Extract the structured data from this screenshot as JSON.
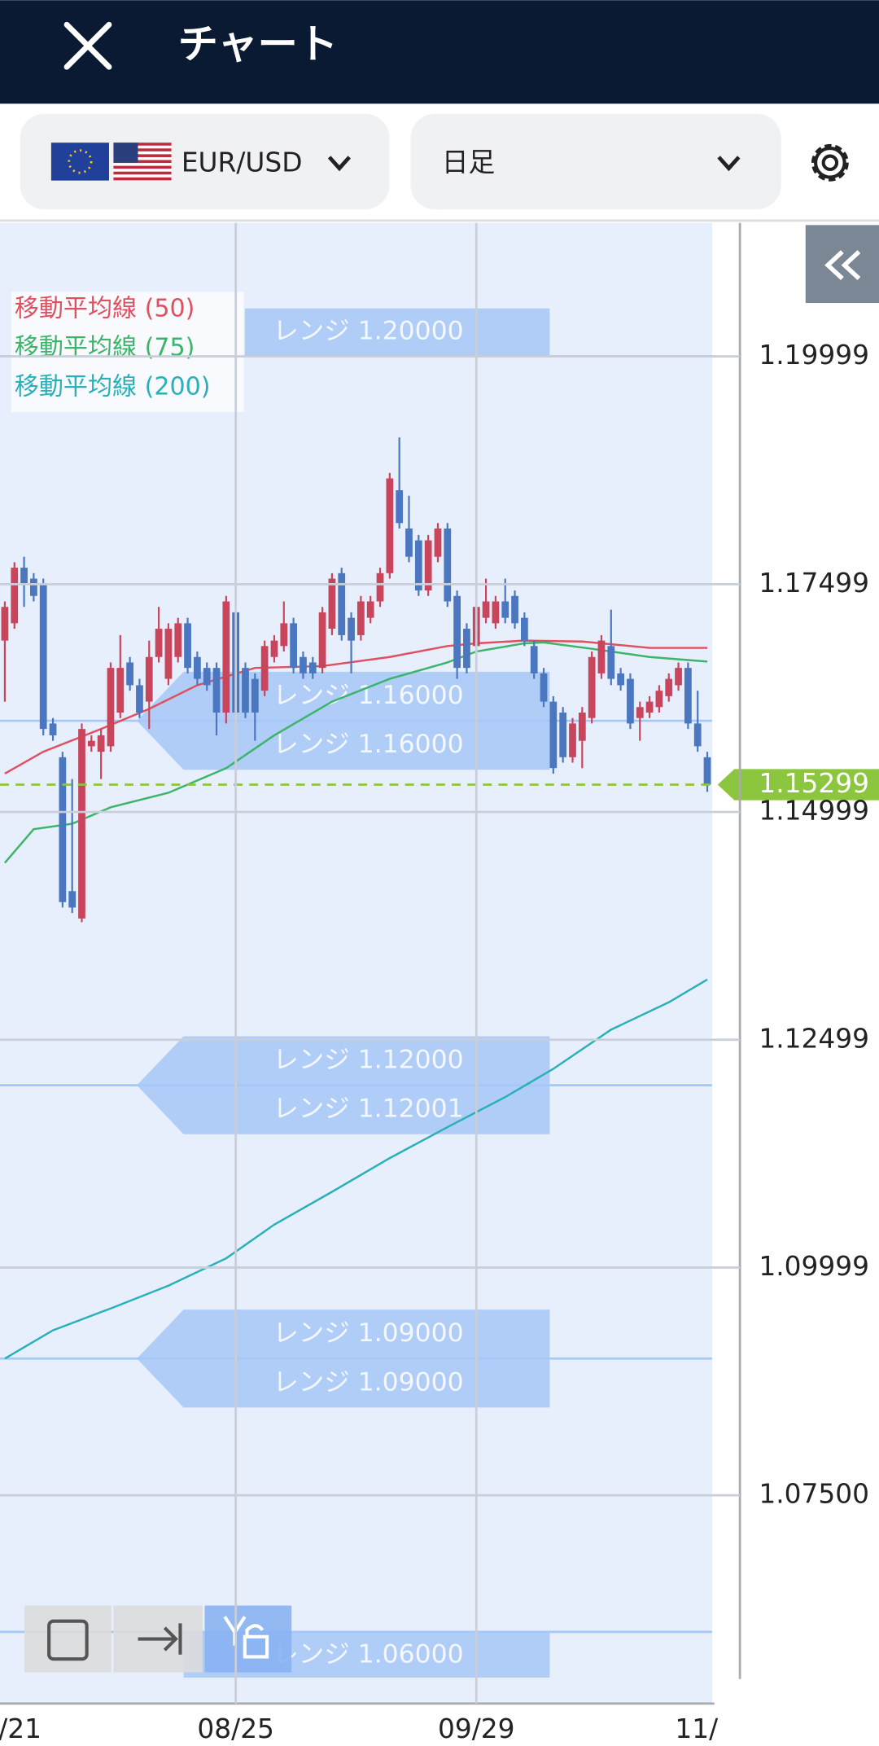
{
  "header": {
    "title": "チャート"
  },
  "toolbar": {
    "symbol": "EUR/USD",
    "timeframe": "日足"
  },
  "chart_data": {
    "type": "candlestick",
    "ohlc": [
      [
        1.1688,
        1.1731,
        1.1621,
        1.1725
      ],
      [
        1.1707,
        1.1774,
        1.1701,
        1.1768
      ],
      [
        1.1768,
        1.178,
        1.1725,
        1.1749
      ],
      [
        1.1756,
        1.1762,
        1.1731,
        1.1737
      ],
      [
        1.1749,
        1.1756,
        1.1584,
        1.1591
      ],
      [
        1.1597,
        1.1603,
        1.1578,
        1.1584
      ],
      [
        1.156,
        1.1566,
        1.1395,
        1.1401
      ],
      [
        1.1413,
        1.1536,
        1.1389,
        1.1395
      ],
      [
        1.1383,
        1.1597,
        1.1379,
        1.1591
      ],
      [
        1.1572,
        1.1584,
        1.1566,
        1.1578
      ],
      [
        1.1566,
        1.1591,
        1.1536,
        1.1584
      ],
      [
        1.1572,
        1.1664,
        1.1566,
        1.1658
      ],
      [
        1.1609,
        1.1694,
        1.1603,
        1.1658
      ],
      [
        1.1664,
        1.167,
        1.1633,
        1.1639
      ],
      [
        1.1639,
        1.1646,
        1.1603,
        1.1609
      ],
      [
        1.1621,
        1.1688,
        1.1591,
        1.167
      ],
      [
        1.167,
        1.1725,
        1.1664,
        1.1701
      ],
      [
        1.1646,
        1.1707,
        1.1639,
        1.1701
      ],
      [
        1.167,
        1.1713,
        1.1664,
        1.1707
      ],
      [
        1.1707,
        1.1713,
        1.1652,
        1.1658
      ],
      [
        1.167,
        1.1676,
        1.1639,
        1.1646
      ],
      [
        1.1658,
        1.1664,
        1.1633,
        1.1639
      ],
      [
        1.1658,
        1.1664,
        1.1584,
        1.1609
      ],
      [
        1.1609,
        1.1737,
        1.1597,
        1.1731
      ],
      [
        1.1719,
        1.1725,
        1.1603,
        1.1609
      ],
      [
        1.1658,
        1.1664,
        1.1603,
        1.1609
      ],
      [
        1.1646,
        1.1652,
        1.1578,
        1.1609
      ],
      [
        1.1633,
        1.1688,
        1.1627,
        1.1682
      ],
      [
        1.167,
        1.1694,
        1.1664,
        1.1688
      ],
      [
        1.1682,
        1.1731,
        1.1676,
        1.1707
      ],
      [
        1.1707,
        1.1713,
        1.1652,
        1.1658
      ],
      [
        1.167,
        1.1676,
        1.1646,
        1.1652
      ],
      [
        1.1664,
        1.167,
        1.1646,
        1.1652
      ],
      [
        1.1658,
        1.1725,
        1.1652,
        1.1719
      ],
      [
        1.1701,
        1.1762,
        1.1694,
        1.1756
      ],
      [
        1.1762,
        1.1768,
        1.1688,
        1.1694
      ],
      [
        1.1713,
        1.1719,
        1.1652,
        1.1688
      ],
      [
        1.1694,
        1.1737,
        1.1688,
        1.1731
      ],
      [
        1.1713,
        1.1737,
        1.1707,
        1.1731
      ],
      [
        1.1731,
        1.1768,
        1.1725,
        1.1762
      ],
      [
        1.1762,
        1.1872,
        1.1756,
        1.1866
      ],
      [
        1.1853,
        1.1911,
        1.1811,
        1.1817
      ],
      [
        1.1811,
        1.1847,
        1.1774,
        1.178
      ],
      [
        1.1798,
        1.1804,
        1.1737,
        1.1743
      ],
      [
        1.1743,
        1.1804,
        1.1737,
        1.1798
      ],
      [
        1.178,
        1.1817,
        1.1774,
        1.1811
      ],
      [
        1.1811,
        1.1817,
        1.1725,
        1.1731
      ],
      [
        1.1737,
        1.1743,
        1.1646,
        1.1658
      ],
      [
        1.1701,
        1.1707,
        1.1652,
        1.1658
      ],
      [
        1.1682,
        1.1731,
        1.1676,
        1.1725
      ],
      [
        1.1713,
        1.1756,
        1.1707,
        1.1731
      ],
      [
        1.1707,
        1.1737,
        1.1701,
        1.1731
      ],
      [
        1.1731,
        1.1756,
        1.1707,
        1.1713
      ],
      [
        1.1737,
        1.1743,
        1.1701,
        1.1707
      ],
      [
        1.1713,
        1.1719,
        1.1682,
        1.1688
      ],
      [
        1.1682,
        1.1688,
        1.1646,
        1.1652
      ],
      [
        1.1652,
        1.1658,
        1.1615,
        1.1621
      ],
      [
        1.1621,
        1.1627,
        1.1542,
        1.1548
      ],
      [
        1.1609,
        1.1615,
        1.1554,
        1.156
      ],
      [
        1.156,
        1.1603,
        1.1554,
        1.1597
      ],
      [
        1.1578,
        1.1615,
        1.1548,
        1.1609
      ],
      [
        1.1603,
        1.1676,
        1.1597,
        1.167
      ],
      [
        1.1652,
        1.1694,
        1.1646,
        1.1688
      ],
      [
        1.1682,
        1.1722,
        1.1639,
        1.1646
      ],
      [
        1.1652,
        1.1658,
        1.1633,
        1.1639
      ],
      [
        1.1646,
        1.1652,
        1.1591,
        1.1597
      ],
      [
        1.1603,
        1.1621,
        1.1578,
        1.1615
      ],
      [
        1.1609,
        1.1627,
        1.1603,
        1.1621
      ],
      [
        1.1615,
        1.1639,
        1.1609,
        1.1633
      ],
      [
        1.1627,
        1.1652,
        1.1621,
        1.1646
      ],
      [
        1.1639,
        1.1664,
        1.1633,
        1.1658
      ],
      [
        1.1658,
        1.1664,
        1.1591,
        1.1597
      ],
      [
        1.1597,
        1.1633,
        1.1566,
        1.1572
      ],
      [
        1.156,
        1.1566,
        1.1522,
        1.15299
      ]
    ],
    "up_color": "#c9455c",
    "down_color": "#4a77c0",
    "series": [
      {
        "name": "移動平均線 (50)",
        "color": "#e0505e",
        "x": [
          0,
          4,
          10,
          15,
          20,
          26,
          33,
          40,
          46,
          49,
          54,
          60,
          67,
          73
        ],
        "values": [
          1.1542,
          1.1566,
          1.1591,
          1.1613,
          1.1639,
          1.1658,
          1.166,
          1.167,
          1.1682,
          1.1685,
          1.1688,
          1.1687,
          1.168,
          1.168
        ]
      },
      {
        "name": "移動平均線 (75)",
        "color": "#3cb56a",
        "x": [
          0,
          3,
          7,
          11,
          17,
          23,
          28,
          34,
          40,
          46,
          49,
          54,
          56,
          61,
          67,
          73
        ],
        "values": [
          1.1444,
          1.1481,
          1.1487,
          1.1505,
          1.1521,
          1.1548,
          1.1584,
          1.1621,
          1.1646,
          1.1664,
          1.1676,
          1.1685,
          1.1686,
          1.1679,
          1.167,
          1.1665
        ]
      },
      {
        "name": "移動平均線 (200)",
        "color": "#2ab0b8",
        "x": [
          0,
          5,
          11,
          17,
          23,
          28,
          34,
          40,
          46,
          52,
          57,
          63,
          69,
          73
        ],
        "values": [
          1.09,
          1.0931,
          1.0955,
          1.098,
          1.101,
          1.1047,
          1.1083,
          1.112,
          1.1154,
          1.1187,
          1.1218,
          1.1261,
          1.1291,
          1.1316
        ]
      }
    ],
    "ranges": [
      {
        "value": 1.2,
        "labels": [
          "レンジ 1.20000"
        ]
      },
      {
        "value": 1.16,
        "labels": [
          "レンジ 1.16000",
          "レンジ 1.16000"
        ]
      },
      {
        "value": 1.12,
        "labels": [
          "レンジ 1.12000",
          "レンジ 1.12001"
        ]
      },
      {
        "value": 1.09,
        "labels": [
          "レンジ 1.09000",
          "レンジ 1.09000"
        ]
      },
      {
        "value": 1.06,
        "labels": [
          "レンジ 1.06000"
        ]
      }
    ],
    "range_color": "#a6c7f7",
    "current_price": 1.15299,
    "current_price_color": "#8cc63f",
    "xlim": [
      -0.5,
      73.5
    ],
    "xticks": [
      {
        "value": -1,
        "label": "/21"
      },
      {
        "value": 24,
        "label": "08/25"
      },
      {
        "value": 49,
        "label": "09/29"
      },
      {
        "value": 74,
        "label": "11/"
      }
    ],
    "ylim": [
      1.05214,
      1.21465
    ],
    "yticks": [
      1.19999,
      1.17499,
      1.14999,
      1.12499,
      1.09999,
      {
        "value": 1.075,
        "label": "1.07500"
      }
    ],
    "grid": true
  }
}
